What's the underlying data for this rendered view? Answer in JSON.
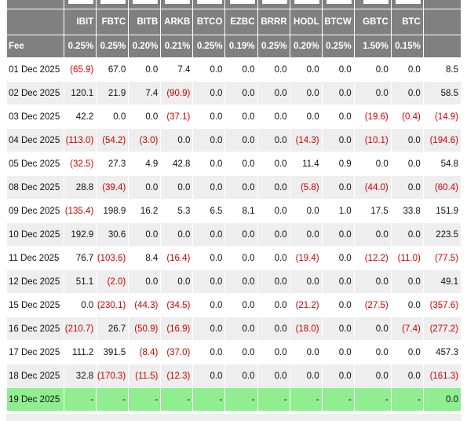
{
  "header": {
    "tickers": [
      "IBIT",
      "FBTC",
      "BITB",
      "ARKB",
      "BTCO",
      "EZBC",
      "BRRR",
      "HODL",
      "BTCW",
      "GBTC",
      "BTC",
      ""
    ],
    "fee_label": "Fee",
    "fees": [
      "0.25%",
      "0.25%",
      "0.20%",
      "0.21%",
      "0.25%",
      "0.19%",
      "0.25%",
      "0.20%",
      "0.25%",
      "1.50%",
      "0.15%",
      ""
    ]
  },
  "rows": [
    {
      "date": "01 Dec 2025",
      "vals": [
        "(65.9)",
        "67.0",
        "0.0",
        "7.4",
        "0.0",
        "0.0",
        "0.0",
        "0.0",
        "0.0",
        "0.0",
        "0.0",
        "8.5"
      ]
    },
    {
      "date": "02 Dec 2025",
      "vals": [
        "120.1",
        "21.9",
        "7.4",
        "(90.9)",
        "0.0",
        "0.0",
        "0.0",
        "0.0",
        "0.0",
        "0.0",
        "0.0",
        "58.5"
      ]
    },
    {
      "date": "03 Dec 2025",
      "vals": [
        "42.2",
        "0.0",
        "0.0",
        "(37.1)",
        "0.0",
        "0.0",
        "0.0",
        "0.0",
        "0.0",
        "(19.6)",
        "(0.4)",
        "(14.9)"
      ]
    },
    {
      "date": "04 Dec 2025",
      "vals": [
        "(113.0)",
        "(54.2)",
        "(3.0)",
        "0.0",
        "0.0",
        "0.0",
        "0.0",
        "(14.3)",
        "0.0",
        "(10.1)",
        "0.0",
        "(194.6)"
      ]
    },
    {
      "date": "05 Dec 2025",
      "vals": [
        "(32.5)",
        "27.3",
        "4.9",
        "42.8",
        "0.0",
        "0.0",
        "0.0",
        "11.4",
        "0.9",
        "0.0",
        "0.0",
        "54.8"
      ]
    },
    {
      "date": "08 Dec 2025",
      "vals": [
        "28.8",
        "(39.4)",
        "0.0",
        "0.0",
        "0.0",
        "0.0",
        "0.0",
        "(5.8)",
        "0.0",
        "(44.0)",
        "0.0",
        "(60.4)"
      ]
    },
    {
      "date": "09 Dec 2025",
      "vals": [
        "(135.4)",
        "198.9",
        "16.2",
        "5.3",
        "6.5",
        "8.1",
        "0.0",
        "0.0",
        "1.0",
        "17.5",
        "33.8",
        "151.9"
      ]
    },
    {
      "date": "10 Dec 2025",
      "vals": [
        "192.9",
        "30.6",
        "0.0",
        "0.0",
        "0.0",
        "0.0",
        "0.0",
        "0.0",
        "0.0",
        "0.0",
        "0.0",
        "223.5"
      ]
    },
    {
      "date": "11 Dec 2025",
      "vals": [
        "76.7",
        "(103.6)",
        "8.4",
        "(16.4)",
        "0.0",
        "0.0",
        "0.0",
        "(19.4)",
        "0.0",
        "(12.2)",
        "(11.0)",
        "(77.5)"
      ]
    },
    {
      "date": "12 Dec 2025",
      "vals": [
        "51.1",
        "(2.0)",
        "0.0",
        "0.0",
        "0.0",
        "0.0",
        "0.0",
        "0.0",
        "0.0",
        "0.0",
        "0.0",
        "49.1"
      ]
    },
    {
      "date": "15 Dec 2025",
      "vals": [
        "0.0",
        "(230.1)",
        "(44.3)",
        "(34.5)",
        "0.0",
        "0.0",
        "0.0",
        "(21.2)",
        "0.0",
        "(27.5)",
        "0.0",
        "(357.6)"
      ]
    },
    {
      "date": "16 Dec 2025",
      "vals": [
        "(210.7)",
        "26.7",
        "(50.9)",
        "(16.9)",
        "0.0",
        "0.0",
        "0.0",
        "(18.0)",
        "0.0",
        "0.0",
        "(7.4)",
        "(277.2)"
      ]
    },
    {
      "date": "17 Dec 2025",
      "vals": [
        "111.2",
        "391.5",
        "(8.4)",
        "(37.0)",
        "0.0",
        "0.0",
        "0.0",
        "0.0",
        "0.0",
        "0.0",
        "0.0",
        "457.3"
      ]
    },
    {
      "date": "18 Dec 2025",
      "vals": [
        "32.8",
        "(170.3)",
        "(11.5)",
        "(12.3)",
        "0.0",
        "0.0",
        "0.0",
        "0.0",
        "0.0",
        "0.0",
        "0.0",
        "(161.3)"
      ]
    },
    {
      "date": "19 Dec 2025",
      "vals": [
        "-",
        "-",
        "-",
        "-",
        "-",
        "-",
        "-",
        "-",
        "-",
        "-",
        "-",
        "0.0"
      ]
    }
  ],
  "colors": {
    "header_bg": "#808080",
    "alt_row_bg": "#eeeeee",
    "highlight_row_bg": "#90ee90",
    "negative_text": "#cc0000"
  },
  "icons": [
    "fund-logo-icon"
  ]
}
